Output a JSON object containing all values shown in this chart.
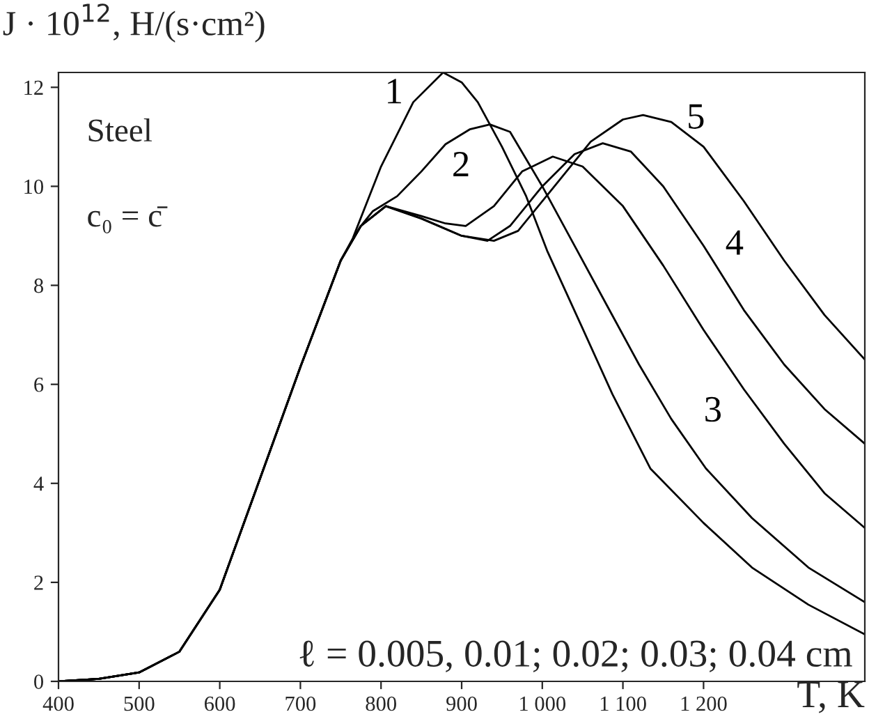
{
  "chart_data": {
    "type": "line",
    "ylabel": "J · 10$^{12}$, H/(s·cm²)",
    "xlabel": "T, K",
    "xlim": [
      400,
      1400
    ],
    "ylim": [
      0,
      12.3
    ],
    "xticks": [
      400,
      500,
      600,
      700,
      800,
      900,
      {
        "value": 1000,
        "label": "1 000"
      },
      {
        "value": 1100,
        "label": "1 100"
      },
      {
        "value": 1200,
        "label": "1 200"
      }
    ],
    "yticks": [
      0,
      2,
      4,
      6,
      8,
      10,
      12
    ],
    "grid": false,
    "legend": false,
    "marker": "none",
    "line_style": "solid",
    "series": [
      {
        "name": "1",
        "color": "#000000",
        "x": [
          400,
          450,
          500,
          550,
          600,
          650,
          700,
          750,
          765,
          800,
          840,
          877,
          900,
          920,
          950,
          980,
          1006,
          1048,
          1087,
          1134,
          1200,
          1260,
          1330,
          1400
        ],
        "values": [
          0,
          0.05,
          0.18,
          0.6,
          1.85,
          4.1,
          6.35,
          8.5,
          8.95,
          10.4,
          11.7,
          12.3,
          12.1,
          11.7,
          10.8,
          9.8,
          8.7,
          7.2,
          5.8,
          4.3,
          3.2,
          2.3,
          1.55,
          0.95
        ]
      },
      {
        "name": "2",
        "color": "#000000",
        "x": [
          400,
          450,
          500,
          550,
          600,
          650,
          700,
          750,
          775,
          790,
          820,
          850,
          880,
          910,
          935,
          960,
          1000,
          1040,
          1080,
          1120,
          1160,
          1203,
          1260,
          1330,
          1400
        ],
        "values": [
          0,
          0.05,
          0.18,
          0.6,
          1.85,
          4.1,
          6.35,
          8.5,
          9.2,
          9.5,
          9.8,
          10.3,
          10.85,
          11.15,
          11.25,
          11.1,
          10.0,
          8.8,
          7.6,
          6.4,
          5.3,
          4.3,
          3.3,
          2.3,
          1.6
        ]
      },
      {
        "name": "3",
        "color": "#000000",
        "x": [
          400,
          450,
          500,
          550,
          600,
          650,
          700,
          750,
          775,
          806,
          850,
          880,
          905,
          940,
          975,
          1013,
          1050,
          1100,
          1150,
          1200,
          1250,
          1300,
          1350,
          1400
        ],
        "values": [
          0,
          0.05,
          0.18,
          0.6,
          1.85,
          4.1,
          6.35,
          8.5,
          9.2,
          9.6,
          9.4,
          9.25,
          9.2,
          9.6,
          10.3,
          10.6,
          10.4,
          9.6,
          8.4,
          7.1,
          5.9,
          4.8,
          3.8,
          3.1
        ]
      },
      {
        "name": "4",
        "color": "#000000",
        "x": [
          400,
          450,
          500,
          550,
          600,
          650,
          700,
          750,
          775,
          806,
          850,
          900,
          932,
          960,
          1000,
          1040,
          1075,
          1110,
          1150,
          1200,
          1250,
          1300,
          1350,
          1400
        ],
        "values": [
          0,
          0.05,
          0.18,
          0.6,
          1.85,
          4.1,
          6.35,
          8.5,
          9.2,
          9.6,
          9.35,
          9.0,
          8.9,
          9.2,
          10.0,
          10.65,
          10.87,
          10.7,
          10.0,
          8.8,
          7.5,
          6.4,
          5.5,
          4.8
        ]
      },
      {
        "name": "5",
        "color": "#000000",
        "x": [
          400,
          450,
          500,
          550,
          600,
          650,
          700,
          750,
          775,
          806,
          850,
          900,
          940,
          970,
          1010,
          1060,
          1100,
          1125,
          1160,
          1200,
          1250,
          1300,
          1350,
          1400
        ],
        "values": [
          0,
          0.05,
          0.18,
          0.6,
          1.85,
          4.1,
          6.35,
          8.5,
          9.2,
          9.6,
          9.35,
          9.0,
          8.9,
          9.1,
          9.9,
          10.9,
          11.35,
          11.44,
          11.3,
          10.8,
          9.7,
          8.5,
          7.4,
          6.5
        ]
      }
    ],
    "annotations": [
      "Steel",
      "c₀ = c̄",
      "ℓ = 0.005, 0.01; 0.02; 0.03; 0.04 cm"
    ]
  }
}
